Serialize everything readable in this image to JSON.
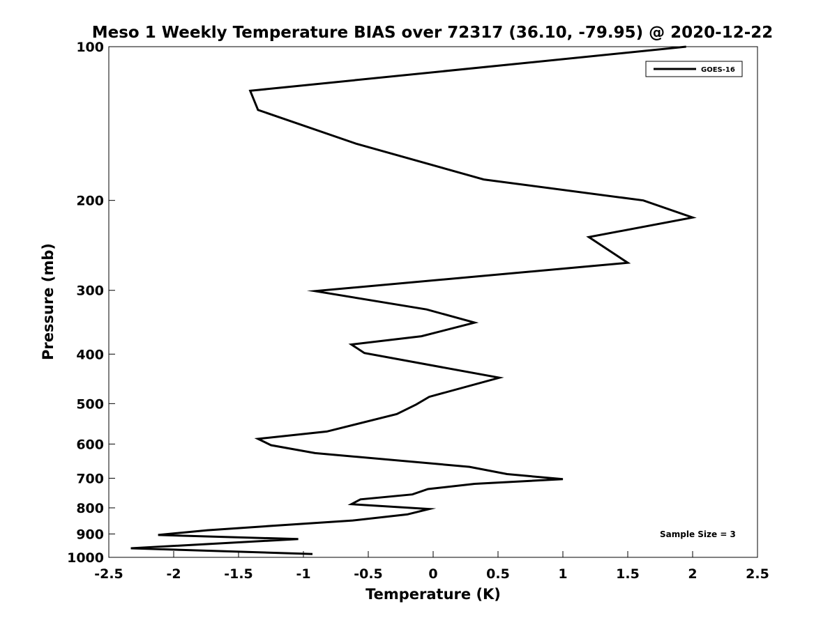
{
  "chart_data": {
    "type": "line",
    "title": "Meso 1 Weekly Temperature BIAS over 72317 (36.10, -79.95) @ 2020-12-22",
    "xlabel": "Temperature (K)",
    "ylabel": "Pressure (mb)",
    "xlim": [
      -2.5,
      2.5
    ],
    "ylim": [
      100,
      1000
    ],
    "y_scale": "log",
    "y_reversed": true,
    "x_ticks": [
      "-2.5",
      "-2",
      "-1.5",
      "-1",
      "-0.5",
      "0",
      "0.5",
      "1",
      "1.5",
      "2",
      "2.5"
    ],
    "y_ticks": [
      "100",
      "200",
      "300",
      "400",
      "500",
      "600",
      "700",
      "800",
      "900",
      "1000"
    ],
    "grid": false,
    "legend_position": "top-right",
    "annotation": "Sample Size = 3",
    "series": [
      {
        "name": "GOES-16",
        "color": "#000000",
        "x": [
          1.95,
          -1.41,
          -1.35,
          -0.59,
          0.39,
          1.62,
          2.0,
          1.2,
          1.5,
          -0.91,
          -0.05,
          0.32,
          -0.09,
          -0.63,
          -0.53,
          0.51,
          -0.03,
          -0.13,
          -0.28,
          -0.82,
          -1.35,
          -1.25,
          -0.91,
          0.28,
          0.57,
          1.0,
          0.32,
          -0.04,
          -0.16,
          -0.56,
          -0.63,
          -0.03,
          -0.2,
          -0.62,
          -1.25,
          -1.74,
          -2.12,
          -1.04,
          -2.33,
          -0.93
        ],
        "y": [
          100,
          122,
          133,
          155,
          182,
          200,
          216,
          236,
          265,
          301,
          327,
          347,
          369,
          383,
          398,
          445,
          485,
          502,
          524,
          567,
          586,
          603,
          625,
          665,
          687,
          703,
          718,
          735,
          753,
          770,
          787,
          804,
          824,
          847,
          868,
          885,
          904,
          921,
          960,
          985
        ]
      }
    ]
  }
}
